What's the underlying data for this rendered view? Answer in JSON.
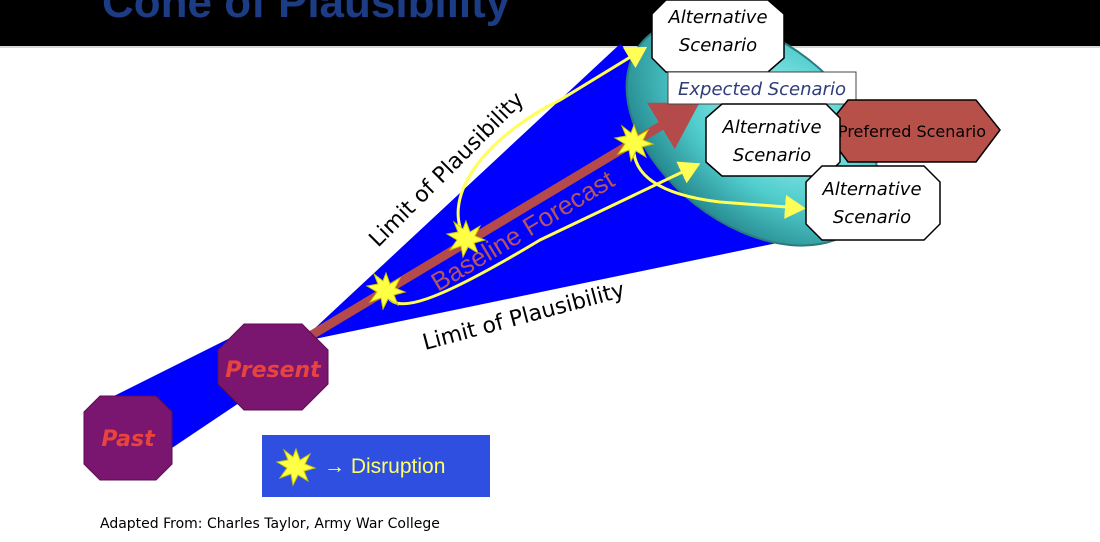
{
  "title": "Cone of Plausibility",
  "labels": {
    "limit_upper": "Limit of Plausibility",
    "limit_lower": "Limit of Plausibility",
    "baseline": "Baseline Forecast",
    "past": "Past",
    "present": "Present",
    "alt_scenario_1_line1": "Alternative",
    "alt_scenario_1_line2": "Scenario",
    "alt_scenario_2_line1": "Alternative",
    "alt_scenario_2_line2": "Scenario",
    "alt_scenario_3_line1": "Alternative",
    "alt_scenario_3_line2": "Scenario",
    "expected_scenario": "Expected Scenario",
    "preferred_scenario": "Preferred Scenario"
  },
  "legend": {
    "symbol_text": "→ Disruption"
  },
  "credit": "Adapted From:  Charles Taylor, Army War College",
  "colors": {
    "cone": "#0000ff",
    "cone_end": "#40c8c8",
    "octagon": "#7a1670",
    "octagon_text": "#e8443c",
    "baseline_arrow": "#b44a4a",
    "alt_arrow": "#ffff55",
    "burst": "#ffff44",
    "preferred_fill": "#b8504a",
    "expected_text": "#2e3d7a",
    "legend_bg": "#2e4fe0",
    "legend_text": "#ffff66"
  }
}
